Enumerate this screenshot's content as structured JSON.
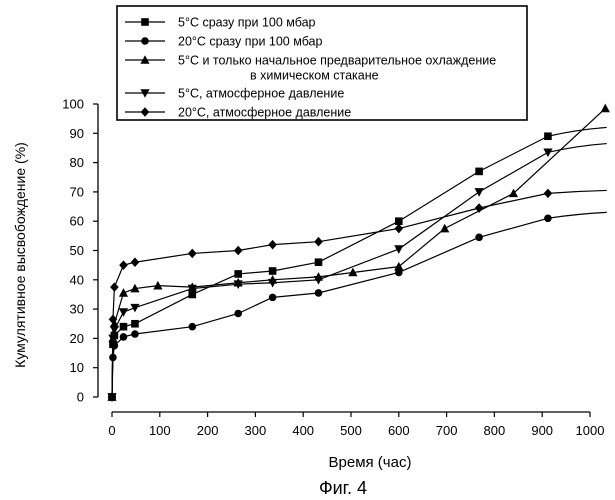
{
  "chart_data": {
    "type": "line",
    "title": "",
    "caption": "Фиг. 4",
    "xlabel": "Время (час)",
    "ylabel": "Кумулятивное высвобождение (%)",
    "xlim": [
      0,
      1050
    ],
    "ylim": [
      0,
      100
    ],
    "x_ticks": [
      0,
      100,
      200,
      300,
      400,
      500,
      600,
      700,
      800,
      900,
      1000
    ],
    "y_ticks": [
      0,
      10,
      20,
      30,
      40,
      50,
      60,
      70,
      80,
      90,
      100
    ],
    "grid": false,
    "legend_position": "top",
    "series": [
      {
        "name": "5°C сразу при 100 мбар",
        "legend_lines": [
          "5°C сразу при 100 мбар"
        ],
        "marker": "square",
        "x": [
          0,
          2,
          5,
          24,
          48,
          168,
          264,
          336,
          432,
          600,
          768,
          912
        ],
        "y": [
          0,
          18,
          21,
          24,
          25,
          35,
          42,
          43,
          46,
          60,
          77,
          89
        ],
        "fit_end": [
          1035,
          92
        ]
      },
      {
        "name": "20°C сразу при 100 мбар",
        "legend_lines": [
          "20°C сразу при 100 мбар"
        ],
        "marker": "circle",
        "x": [
          0,
          2,
          5,
          24,
          48,
          168,
          264,
          336,
          432,
          600,
          768,
          912
        ],
        "y": [
          0,
          13.5,
          17.5,
          20.5,
          21.5,
          24,
          28.5,
          34,
          35.5,
          42.5,
          54.5,
          61
        ],
        "fit_end": [
          1035,
          63
        ]
      },
      {
        "name": "5°C и только начальное предварительное охлаждение в химическом стакане",
        "legend_lines": [
          "5°C и только начальное предварительное охлаждение",
          "в химическом стакане"
        ],
        "marker": "triangle-up",
        "x": [
          0,
          2,
          5,
          24,
          48,
          96,
          168,
          264,
          336,
          432,
          504,
          600,
          696,
          840,
          1032
        ],
        "y": [
          0,
          20,
          25,
          35.5,
          37,
          38,
          37.5,
          39,
          40,
          41,
          42.5,
          44.5,
          57.5,
          69.5,
          98.5
        ]
      },
      {
        "name": "5°C, атмосферное давление",
        "legend_lines": [
          "5°C, атмосферное давление"
        ],
        "marker": "triangle-down",
        "x": [
          0,
          2,
          5,
          24,
          48,
          168,
          264,
          336,
          432,
          600,
          768,
          912
        ],
        "y": [
          0,
          20,
          23,
          29,
          30.5,
          37,
          38.5,
          39,
          40,
          50.5,
          70,
          83.5
        ],
        "fit_end": [
          1035,
          86.5
        ]
      },
      {
        "name": "20°C, атмосферное давление",
        "legend_lines": [
          "20°C, атмосферное давление"
        ],
        "marker": "diamond",
        "x": [
          0,
          2,
          5,
          24,
          48,
          168,
          264,
          336,
          432,
          600,
          768,
          912
        ],
        "y": [
          0,
          26.5,
          37.5,
          45,
          46,
          49,
          50,
          52,
          53,
          57.5,
          64.5,
          69.5
        ],
        "fit_end": [
          1035,
          70.5
        ]
      }
    ]
  }
}
